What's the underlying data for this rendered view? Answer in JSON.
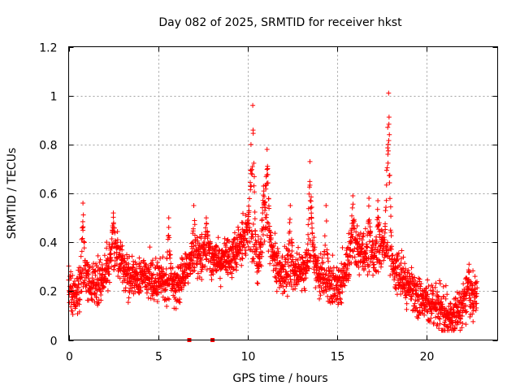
{
  "chart_data": {
    "type": "scatter",
    "title": "Day 082 of 2025, SRMTID for receiver hkst",
    "xlabel": "GPS time / hours",
    "ylabel": "SRMTID / TECUs",
    "xlim": [
      0,
      24
    ],
    "ylim": [
      0,
      1.2
    ],
    "x_ticks": [
      "0",
      "5",
      "10",
      "15",
      "20"
    ],
    "y_ticks": [
      "0",
      "0.2",
      "0.4",
      "0.6",
      "0.8",
      "1",
      "1.2"
    ],
    "grid": true,
    "marker": "+",
    "color": "#ff0000",
    "profile": [
      [
        0.0,
        0.22
      ],
      [
        0.4,
        0.17
      ],
      [
        0.8,
        0.26
      ],
      [
        1.3,
        0.23
      ],
      [
        1.8,
        0.24
      ],
      [
        2.3,
        0.32
      ],
      [
        2.7,
        0.37
      ],
      [
        3.2,
        0.27
      ],
      [
        3.7,
        0.25
      ],
      [
        4.2,
        0.27
      ],
      [
        4.7,
        0.24
      ],
      [
        5.2,
        0.25
      ],
      [
        5.7,
        0.22
      ],
      [
        6.2,
        0.24
      ],
      [
        6.7,
        0.31
      ],
      [
        7.2,
        0.33
      ],
      [
        7.7,
        0.35
      ],
      [
        8.3,
        0.33
      ],
      [
        8.8,
        0.34
      ],
      [
        9.3,
        0.35
      ],
      [
        9.7,
        0.4
      ],
      [
        10.0,
        0.45
      ],
      [
        10.3,
        0.4
      ],
      [
        10.6,
        0.3
      ],
      [
        11.0,
        0.5
      ],
      [
        11.4,
        0.36
      ],
      [
        11.8,
        0.26
      ],
      [
        12.3,
        0.29
      ],
      [
        12.8,
        0.27
      ],
      [
        13.3,
        0.3
      ],
      [
        13.6,
        0.38
      ],
      [
        14.0,
        0.26
      ],
      [
        14.5,
        0.24
      ],
      [
        15.0,
        0.21
      ],
      [
        15.4,
        0.26
      ],
      [
        15.8,
        0.36
      ],
      [
        16.3,
        0.38
      ],
      [
        16.8,
        0.33
      ],
      [
        17.3,
        0.35
      ],
      [
        17.8,
        0.4
      ],
      [
        18.1,
        0.33
      ],
      [
        18.5,
        0.26
      ],
      [
        19.0,
        0.22
      ],
      [
        19.5,
        0.18
      ],
      [
        20.0,
        0.16
      ],
      [
        20.5,
        0.14
      ],
      [
        21.0,
        0.1
      ],
      [
        21.5,
        0.09
      ],
      [
        22.0,
        0.15
      ],
      [
        22.6,
        0.18
      ],
      [
        22.85,
        0.18
      ]
    ],
    "spread": 0.09,
    "samples_per_hour": 120,
    "peaks": [
      {
        "x": 10.3,
        "y": 0.96
      },
      {
        "x": 10.2,
        "y": 0.8
      },
      {
        "x": 11.1,
        "y": 0.78
      },
      {
        "x": 10.9,
        "y": 0.63
      },
      {
        "x": 13.5,
        "y": 0.73
      },
      {
        "x": 14.4,
        "y": 0.55
      },
      {
        "x": 15.9,
        "y": 0.59
      },
      {
        "x": 16.8,
        "y": 0.58
      },
      {
        "x": 17.3,
        "y": 0.57
      },
      {
        "x": 17.9,
        "y": 1.01
      },
      {
        "x": 17.85,
        "y": 0.87
      },
      {
        "x": 0.8,
        "y": 0.56
      },
      {
        "x": 2.5,
        "y": 0.52
      },
      {
        "x": 5.6,
        "y": 0.5
      },
      {
        "x": 7.0,
        "y": 0.55
      },
      {
        "x": 7.7,
        "y": 0.5
      },
      {
        "x": 12.4,
        "y": 0.55
      },
      {
        "x": 22.4,
        "y": 0.31
      }
    ],
    "outliers": [
      [
        6.75,
        0.0
      ],
      [
        8.05,
        0.0
      ]
    ]
  }
}
